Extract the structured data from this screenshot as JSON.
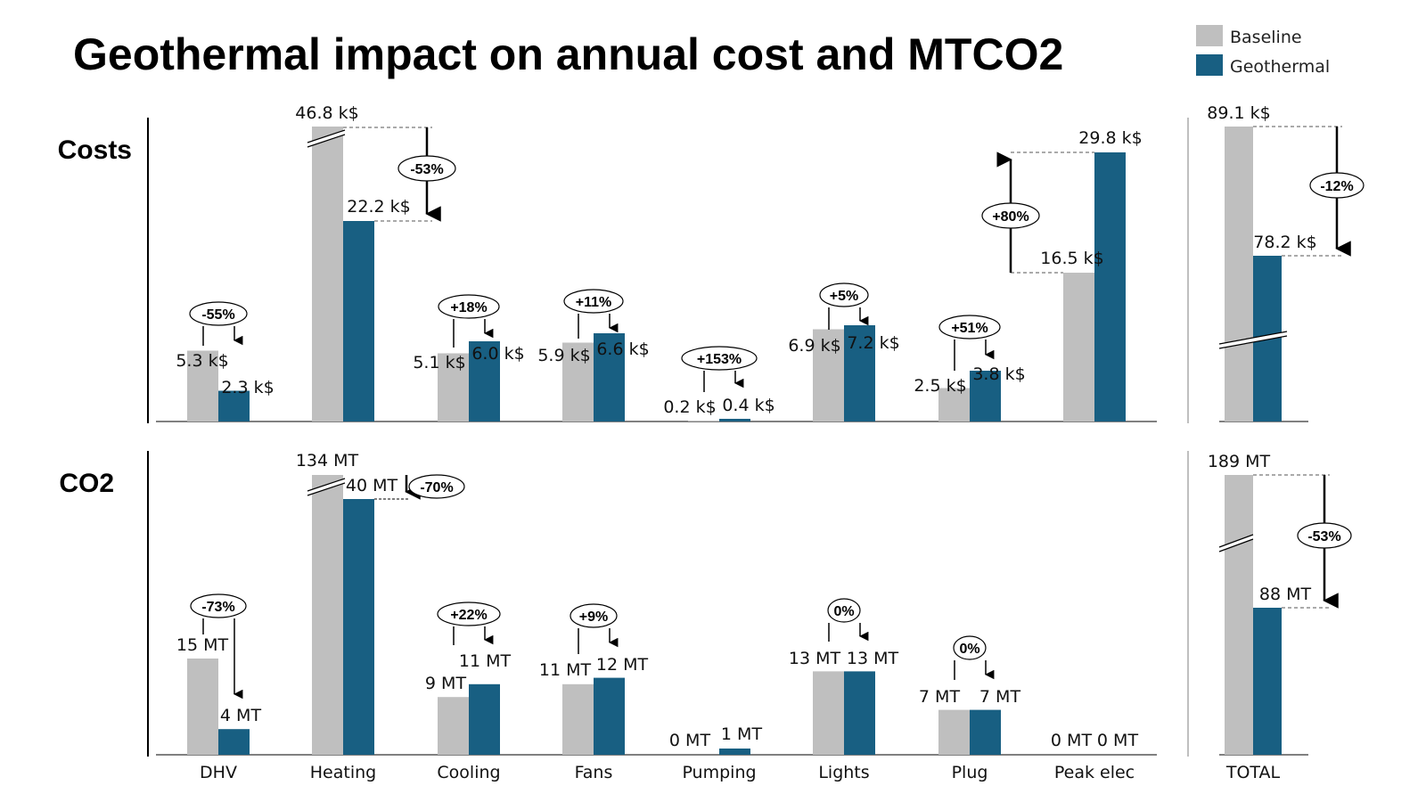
{
  "title": "Geothermal impact on annual cost and MTCO2",
  "legend": [
    {
      "label": "Baseline",
      "color": "#bfbfbf"
    },
    {
      "label": "Geothermal",
      "color": "#185f82"
    }
  ],
  "colors": {
    "baseline": "#bfbfbf",
    "geothermal": "#185f82",
    "axis": "#000000",
    "total_divider": "#bfbfbf"
  },
  "chart_data": [
    {
      "type": "bar",
      "name": "Costs",
      "row_label": "Costs",
      "unit": "k$",
      "categories": [
        "DHV",
        "Heating",
        "Cooling",
        "Fans",
        "Pumping",
        "Lights",
        "Plug",
        "Peak elec"
      ],
      "series": [
        {
          "name": "Baseline",
          "values": [
            5.3,
            46.8,
            5.1,
            5.9,
            0.2,
            6.9,
            2.5,
            16.5
          ]
        },
        {
          "name": "Geothermal",
          "values": [
            2.3,
            22.2,
            6.0,
            6.6,
            0.4,
            7.2,
            3.8,
            29.8
          ]
        }
      ],
      "baseline_labels": [
        "5.3 k$",
        "46.8 k$",
        "5.1 k$",
        "5.9 k$",
        "0.2 k$",
        "6.9 k$",
        "2.5 k$",
        "16.5 k$"
      ],
      "geothermal_labels": [
        "2.3 k$",
        "22.2 k$",
        "6.0 k$",
        "6.6 k$",
        "0.4 k$",
        "7.2 k$",
        "3.8 k$",
        "29.8 k$"
      ],
      "changes": [
        "-55%",
        "-53%",
        "+18%",
        "+11%",
        "+153%",
        "+5%",
        "+51%",
        "+80%"
      ],
      "axis_broken": [
        "Heating"
      ],
      "total": {
        "category": "TOTAL",
        "baseline": 89.1,
        "geothermal": 78.2,
        "baseline_label": "89.1 k$",
        "geothermal_label": "78.2 k$",
        "change": "-12%",
        "axis_broken": true
      }
    },
    {
      "type": "bar",
      "name": "CO2",
      "row_label": "CO2",
      "unit": "MT",
      "categories": [
        "DHV",
        "Heating",
        "Cooling",
        "Fans",
        "Pumping",
        "Lights",
        "Plug",
        "Peak elec"
      ],
      "series": [
        {
          "name": "Baseline",
          "values": [
            15,
            134,
            9,
            11,
            0,
            13,
            7,
            0
          ]
        },
        {
          "name": "Geothermal",
          "values": [
            4,
            40,
            11,
            12,
            1,
            13,
            7,
            0
          ]
        }
      ],
      "baseline_labels": [
        "15 MT",
        "134 MT",
        "9 MT",
        "11 MT",
        "0 MT",
        "13 MT",
        "7 MT",
        "0 MT"
      ],
      "geothermal_labels": [
        "4 MT",
        "40 MT",
        "11 MT",
        "12 MT",
        "1 MT",
        "13 MT",
        "7 MT",
        "0 MT"
      ],
      "changes": [
        "-73%",
        "-70%",
        "+22%",
        "+9%",
        null,
        "0%",
        "0%",
        null
      ],
      "axis_broken": [
        "Heating"
      ],
      "total": {
        "category": "TOTAL",
        "baseline": 189,
        "geothermal": 88,
        "baseline_label": "189 MT",
        "geothermal_label": "88 MT",
        "change": "-53%",
        "axis_broken": true
      }
    }
  ]
}
